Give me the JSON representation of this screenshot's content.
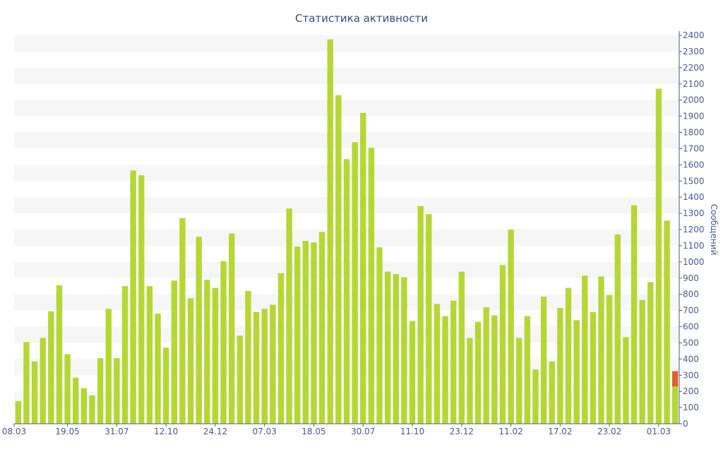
{
  "chart_data": {
    "type": "bar",
    "title": "Статистика активности",
    "ylabel": "Сообщений",
    "xlabel": "",
    "ylim": [
      0,
      2400
    ],
    "y_ticks": [
      0,
      100,
      200,
      300,
      400,
      500,
      600,
      700,
      800,
      900,
      1000,
      1100,
      1200,
      1300,
      1400,
      1500,
      1600,
      1700,
      1800,
      1900,
      2000,
      2100,
      2200,
      2300,
      2400
    ],
    "y_axis_side": "right",
    "grid": "horizontal bands",
    "x_tick_labels": [
      {
        "index": 0,
        "label": "08.03"
      },
      {
        "index": 6,
        "label": "19.05"
      },
      {
        "index": 12,
        "label": "31.07"
      },
      {
        "index": 18,
        "label": "12.10"
      },
      {
        "index": 24,
        "label": "24.12"
      },
      {
        "index": 30,
        "label": "07.03"
      },
      {
        "index": 36,
        "label": "18.05"
      },
      {
        "index": 42,
        "label": "30.07"
      },
      {
        "index": 48,
        "label": "11.10"
      },
      {
        "index": 54,
        "label": "23.12"
      },
      {
        "index": 60,
        "label": "11.02"
      },
      {
        "index": 66,
        "label": "17.02"
      },
      {
        "index": 72,
        "label": "23.02"
      },
      {
        "index": 78,
        "label": "01.03"
      }
    ],
    "values": [
      140,
      505,
      385,
      530,
      695,
      855,
      430,
      285,
      220,
      175,
      405,
      710,
      405,
      850,
      1565,
      1535,
      850,
      680,
      470,
      885,
      1270,
      775,
      1155,
      890,
      840,
      1005,
      1175,
      545,
      820,
      690,
      710,
      735,
      930,
      1330,
      1095,
      1130,
      1120,
      1185,
      2375,
      2030,
      1635,
      1740,
      1920,
      1705,
      1090,
      940,
      925,
      905,
      635,
      1345,
      1295,
      740,
      665,
      760,
      940,
      530,
      630,
      720,
      670,
      980,
      1200,
      530,
      665,
      335,
      785,
      385,
      715,
      840,
      640,
      915,
      690,
      910,
      795,
      1170,
      535,
      1350,
      765,
      875,
      2070,
      1255
    ],
    "current": {
      "index": 80,
      "base": 230,
      "extra": 95
    },
    "colors": {
      "bar": "#b5d733",
      "extra": "#e0602c",
      "text": "#4a5a8c",
      "title": "#3a4a7c",
      "band": "#f6f6f6",
      "axis": "#4a5a8c"
    }
  }
}
